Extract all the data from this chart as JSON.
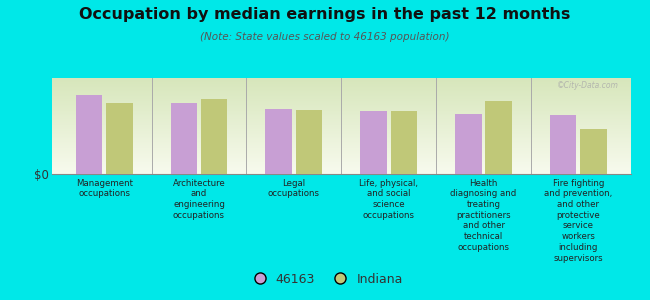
{
  "title": "Occupation by median earnings in the past 12 months",
  "subtitle": "(Note: State values scaled to 46163 population)",
  "background_color": "#00e8e8",
  "plot_bg_top": "#f5f9ee",
  "plot_bg_bottom": "#ddeebb",
  "bar_color_1": "#c89fd4",
  "bar_color_2": "#c0c878",
  "categories": [
    "Management\noccupations",
    "Architecture\nand\nengineering\noccupations",
    "Legal\noccupations",
    "Life, physical,\nand social\nscience\noccupations",
    "Health\ndiagnosing and\ntreating\npractitioners\nand other\ntechnical\noccupations",
    "Fire fighting\nand prevention,\nand other\nprotective\nservice\nworkers\nincluding\nsupervisors"
  ],
  "values_1": [
    0.82,
    0.74,
    0.68,
    0.66,
    0.63,
    0.61
  ],
  "values_2": [
    0.74,
    0.78,
    0.67,
    0.66,
    0.76,
    0.47
  ],
  "ylabel": "$0",
  "legend_labels": [
    "46163",
    "Indiana"
  ],
  "watermark": "©City-Data.com"
}
